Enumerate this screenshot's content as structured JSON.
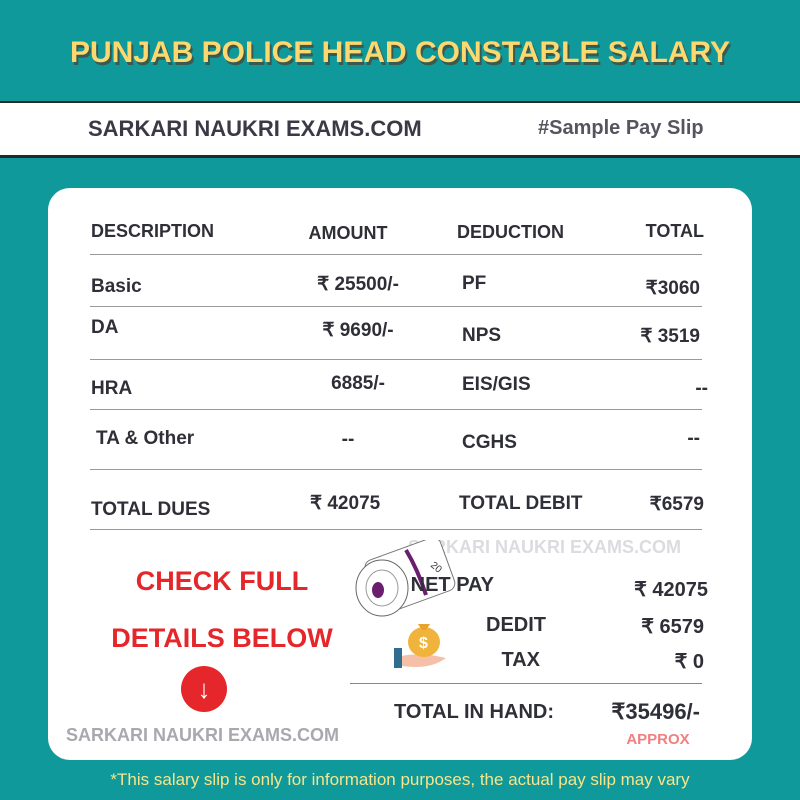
{
  "header": {
    "title": "PUNJAB POLICE HEAD CONSTABLE SALARY",
    "site": "SARKARI NAUKRI EXAMS.COM",
    "tag": "#Sample Pay Slip"
  },
  "table": {
    "columns": [
      "DESCRIPTION",
      "AMOUNT",
      "DEDUCTION",
      "TOTAL"
    ],
    "rows": [
      {
        "desc": "Basic",
        "amount": "₹ 25500/-",
        "deduction": "PF",
        "total": "₹3060"
      },
      {
        "desc": "DA",
        "amount": "₹ 9690/-",
        "deduction": "NPS",
        "total": "₹ 3519"
      },
      {
        "desc": "HRA",
        "amount": "6885/-",
        "deduction": "EIS/GIS",
        "total": "--"
      },
      {
        "desc": "TA & Other",
        "amount": "--",
        "deduction": "CGHS",
        "total": "--"
      }
    ],
    "totals": {
      "dues_label": "TOTAL DUES",
      "dues": "₹ 42075",
      "debit_label": "TOTAL DEBIT",
      "debit": "₹6579"
    }
  },
  "summary": {
    "watermark": "SARKARI NAUKRI EXAMS.COM",
    "net_pay_label": "NET PAY",
    "net_pay": "₹ 42075",
    "debit_label": "DEDIT",
    "debit": "₹ 6579",
    "tax_label": "TAX",
    "tax": "₹ 0",
    "in_hand_label": "TOTAL IN HAND:",
    "in_hand": "₹35496/-",
    "approx": "APPROX",
    "note_number": "20"
  },
  "cta": {
    "line1": "CHECK FULL",
    "line2": "DETAILS BELOW",
    "icon": "arrow-down-circle-icon"
  },
  "card_watermark": "SARKARI NAUKRI EXAMS.COM",
  "footer": "*This salary slip is only for information purposes, the actual pay slip may vary",
  "colors": {
    "background": "#0f999b",
    "title": "#fbd870",
    "cta": "#e5262a",
    "approx": "#f08080"
  }
}
